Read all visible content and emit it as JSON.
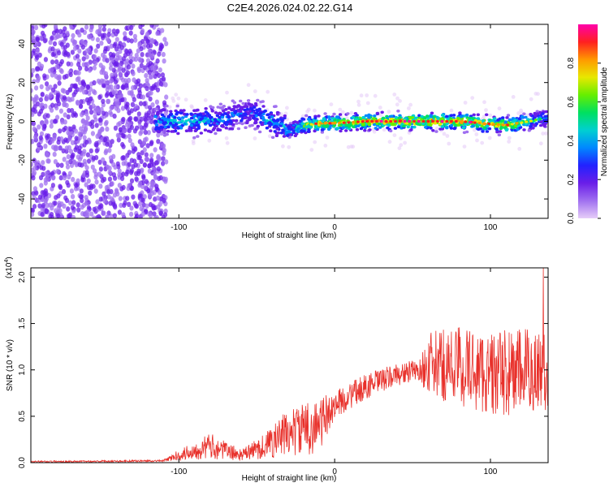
{
  "chart_data": [
    {
      "type": "heatmap",
      "title": "C2E4.2026.024.02.22.G14",
      "xlabel": "Height of straight line (km)",
      "ylabel": "Frequency (Hz)",
      "xlim": [
        -195,
        137
      ],
      "ylim": [
        -50,
        50
      ],
      "xticks": [
        -100,
        0,
        100
      ],
      "yticks": [
        -40,
        -20,
        0,
        20,
        40
      ],
      "colorbar": {
        "label": "Normalized spectral amplitude",
        "range": [
          0,
          1
        ],
        "ticks": [
          "0.0",
          "0.2",
          "0.4",
          "0.6",
          "0.8"
        ],
        "colors": [
          "#e6cdf8",
          "#a070f0",
          "#6a1ee8",
          "#2222ff",
          "#0088ff",
          "#00d0d0",
          "#00e060",
          "#66ee00",
          "#e8e800",
          "#ff9900",
          "#ff2020",
          "#ff00aa"
        ]
      },
      "ridge": [
        {
          "x": -115,
          "f": 0,
          "amp": 0.45
        },
        {
          "x": -95,
          "f": 0,
          "amp": 0.5
        },
        {
          "x": -70,
          "f": 1,
          "amp": 0.4
        },
        {
          "x": -55,
          "f": 5,
          "amp": 0.3
        },
        {
          "x": -45,
          "f": 2,
          "amp": 0.45
        },
        {
          "x": -35,
          "f": -2,
          "amp": 0.45
        },
        {
          "x": -28,
          "f": -5,
          "amp": 0.4
        },
        {
          "x": -20,
          "f": -2,
          "amp": 0.7
        },
        {
          "x": -10,
          "f": -1,
          "amp": 0.75
        },
        {
          "x": 0,
          "f": -1,
          "amp": 0.8
        },
        {
          "x": 20,
          "f": 0,
          "amp": 0.85
        },
        {
          "x": 50,
          "f": 0,
          "amp": 0.85
        },
        {
          "x": 80,
          "f": 0,
          "amp": 0.85
        },
        {
          "x": 110,
          "f": -2,
          "amp": 0.8
        },
        {
          "x": 125,
          "f": 0,
          "amp": 0.6
        },
        {
          "x": 137,
          "f": 2,
          "amp": 0.4
        }
      ]
    },
    {
      "type": "line",
      "xlabel": "Height of straight line (km)",
      "ylabel": "SNR (10 * v/v)",
      "yscale_label": "(x10",
      "yscale_exp": "4",
      "yscale_close": ")",
      "xlim": [
        -195,
        137
      ],
      "ylim": [
        0,
        2.1
      ],
      "xticks": [
        -100,
        0,
        100
      ],
      "yticks": [
        "0.0",
        "0.5",
        "1.0",
        "1.5",
        "2.0"
      ],
      "color": "#e8302a",
      "envelope": [
        {
          "x": -195,
          "mean": 0.01,
          "amp": 0.01
        },
        {
          "x": -110,
          "mean": 0.02,
          "amp": 0.01
        },
        {
          "x": -100,
          "mean": 0.08,
          "amp": 0.06
        },
        {
          "x": -80,
          "mean": 0.18,
          "amp": 0.14
        },
        {
          "x": -60,
          "mean": 0.08,
          "amp": 0.06
        },
        {
          "x": -45,
          "mean": 0.18,
          "amp": 0.14
        },
        {
          "x": -30,
          "mean": 0.32,
          "amp": 0.26
        },
        {
          "x": -10,
          "mean": 0.4,
          "amp": 0.3
        },
        {
          "x": 0,
          "mean": 0.62,
          "amp": 0.15
        },
        {
          "x": 20,
          "mean": 0.82,
          "amp": 0.14
        },
        {
          "x": 40,
          "mean": 0.95,
          "amp": 0.12
        },
        {
          "x": 55,
          "mean": 1.0,
          "amp": 0.12
        },
        {
          "x": 60,
          "mean": 1.05,
          "amp": 0.35
        },
        {
          "x": 80,
          "mean": 1.05,
          "amp": 0.45
        },
        {
          "x": 100,
          "mean": 0.95,
          "amp": 0.45
        },
        {
          "x": 120,
          "mean": 0.98,
          "amp": 0.48
        },
        {
          "x": 137,
          "mean": 1.0,
          "amp": 0.45
        }
      ],
      "peak": {
        "x": 134,
        "y": 2.1
      }
    }
  ]
}
